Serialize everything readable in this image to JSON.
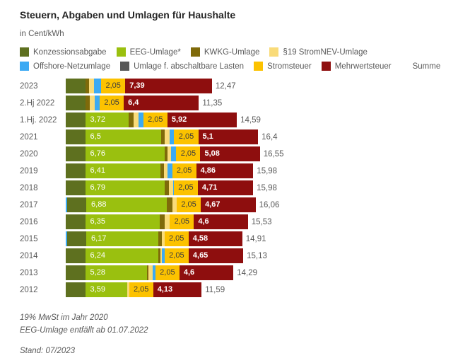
{
  "header": {
    "title": "Steuern, Abgaben und Umlagen für Haushalte",
    "subtitle": "in Cent/kWh"
  },
  "legend": {
    "rows": [
      [
        {
          "label": "Konzessionsabgabe",
          "color": "#5e701f"
        },
        {
          "label": "EEG-Umlage*",
          "color": "#9ac00f"
        },
        {
          "label": "KWKG-Umlage",
          "color": "#7f6a0a"
        },
        {
          "label": "§19 StromNEV-Umlage",
          "color": "#f9db79"
        }
      ],
      [
        {
          "label": "Offshore-Netzumlage",
          "color": "#3caaf3"
        },
        {
          "label": "Umlage f. abschaltbare Lasten",
          "color": "#585858"
        },
        {
          "label": "Stromsteuer",
          "color": "#fcc200"
        },
        {
          "label": "Mehrwertsteuer",
          "color": "#8e0e0e"
        },
        {
          "label": "Summe",
          "color": null
        }
      ]
    ]
  },
  "chart_data": {
    "type": "bar",
    "orientation": "horizontal",
    "stacked": true,
    "unit": "Cent/kWh",
    "title": "Steuern, Abgaben und Umlagen für Haushalte",
    "xlim": [
      0,
      16.55
    ],
    "series": [
      "Konzessionsabgabe",
      "EEG-Umlage*",
      "KWKG-Umlage",
      "§19 StromNEV-Umlage",
      "Offshore-Netzumlage",
      "Umlage f. abschaltbare Lasten",
      "Stromsteuer",
      "Mehrwertsteuer"
    ],
    "series_colors": [
      "#5e701f",
      "#9ac00f",
      "#7f6a0a",
      "#f9db79",
      "#3caaf3",
      "#585858",
      "#fcc200",
      "#8e0e0e"
    ],
    "categories": [
      "2023",
      "2.Hj 2022",
      "1.Hj. 2022",
      "2021",
      "2020",
      "2019",
      "2018",
      "2017",
      "2016",
      "2015",
      "2014",
      "2013",
      "2012"
    ],
    "rows": [
      {
        "category": "2023",
        "values": [
          1.66,
          0,
          0.357,
          0.417,
          0.591,
          0,
          2.05,
          7.39
        ],
        "segment_labels": [
          null,
          null,
          null,
          null,
          null,
          null,
          "2,05",
          "7,39"
        ],
        "sum_label": "12,47"
      },
      {
        "category": "2.Hj 2022",
        "values": [
          1.66,
          0,
          0.378,
          0.437,
          0.419,
          0.003,
          2.05,
          6.4
        ],
        "segment_labels": [
          null,
          null,
          null,
          null,
          null,
          null,
          "2,05",
          "6,4"
        ],
        "sum_label": "11,35"
      },
      {
        "category": "1.Hj. 2022",
        "values": [
          1.66,
          3.72,
          0.378,
          0.437,
          0.419,
          0.003,
          2.05,
          5.92
        ],
        "segment_labels": [
          null,
          "3,72",
          null,
          null,
          null,
          null,
          "2,05",
          "5,92"
        ],
        "sum_label": "14,59"
      },
      {
        "category": "2021",
        "values": [
          1.66,
          6.5,
          0.254,
          0.432,
          0.395,
          0.009,
          2.05,
          5.1
        ],
        "segment_labels": [
          null,
          "6,5",
          null,
          null,
          null,
          null,
          "2,05",
          "5,1"
        ],
        "sum_label": "16,4"
      },
      {
        "category": "2020",
        "values": [
          1.66,
          6.76,
          0.226,
          0.358,
          0.416,
          0.007,
          2.05,
          5.08
        ],
        "segment_labels": [
          null,
          "6,76",
          null,
          null,
          null,
          null,
          "2,05",
          "5,08"
        ],
        "sum_label": "16,55"
      },
      {
        "category": "2019",
        "values": [
          1.66,
          6.41,
          0.28,
          0.305,
          0.416,
          0.005,
          2.05,
          4.86
        ],
        "segment_labels": [
          null,
          "6,41",
          null,
          null,
          null,
          null,
          "2,05",
          "4,86"
        ],
        "sum_label": "15,98"
      },
      {
        "category": "2018",
        "values": [
          1.66,
          6.79,
          0.345,
          0.37,
          0.037,
          0.011,
          2.05,
          4.71
        ],
        "segment_labels": [
          null,
          "6,79",
          null,
          null,
          null,
          null,
          "2,05",
          "4,71"
        ],
        "sum_label": "15,98"
      },
      {
        "category": "2017",
        "values": [
          1.66,
          6.88,
          0.438,
          0.388,
          -0.028,
          0.006,
          2.05,
          4.67
        ],
        "segment_labels": [
          null,
          "6,88",
          null,
          null,
          null,
          null,
          "2,05",
          "4,67"
        ],
        "sum_label": "16,06"
      },
      {
        "category": "2016",
        "values": [
          1.66,
          6.35,
          0.445,
          0.378,
          0.04,
          0.006,
          2.05,
          4.6
        ],
        "segment_labels": [
          null,
          "6,35",
          null,
          null,
          null,
          null,
          "2,05",
          "4,6"
        ],
        "sum_label": "15,53"
      },
      {
        "category": "2015",
        "values": [
          1.66,
          6.17,
          0.254,
          0.237,
          -0.051,
          0.006,
          2.05,
          4.58
        ],
        "segment_labels": [
          null,
          "6,17",
          null,
          null,
          null,
          null,
          "2,05",
          "4,58"
        ],
        "sum_label": "14,91"
      },
      {
        "category": "2014",
        "values": [
          1.66,
          6.24,
          0.178,
          0.092,
          0.25,
          0.009,
          2.05,
          4.65
        ],
        "segment_labels": [
          null,
          "6,24",
          null,
          null,
          null,
          null,
          "2,05",
          "4,65"
        ],
        "sum_label": "15,13"
      },
      {
        "category": "2013",
        "values": [
          1.66,
          5.28,
          0.126,
          0.329,
          0.25,
          0,
          2.05,
          4.6
        ],
        "segment_labels": [
          null,
          "5,28",
          null,
          null,
          null,
          null,
          "2,05",
          "4,6"
        ],
        "sum_label": "14,29"
      },
      {
        "category": "2012",
        "values": [
          1.66,
          3.59,
          0.002,
          0.151,
          0,
          0,
          2.05,
          4.13
        ],
        "segment_labels": [
          null,
          "3,59",
          null,
          null,
          null,
          null,
          "2,05",
          "4,13"
        ],
        "sum_label": "11,59"
      }
    ]
  },
  "footnotes": [
    "19% MwSt im Jahr 2020",
    "EEG-Umlage entfällt ab 01.07.2022"
  ],
  "stand": "Stand: 07/2023"
}
